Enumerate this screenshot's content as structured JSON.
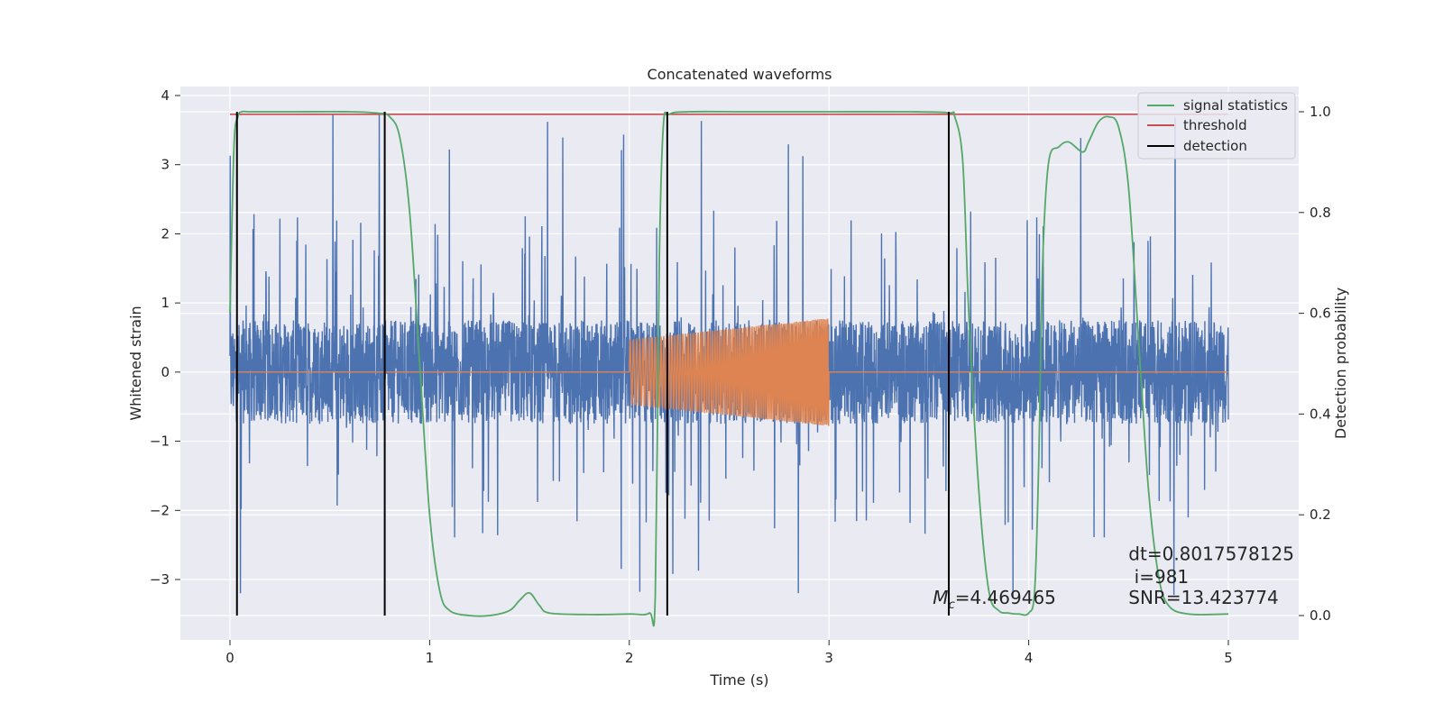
{
  "chart_data": {
    "type": "line",
    "title": "Concatenated waveforms",
    "xlabel": "Time (s)",
    "ylabel": "Whitened strain",
    "y2label": "Detection probability",
    "xlim": [
      -0.24,
      5.35
    ],
    "ylim": [
      -3.87,
      4.11
    ],
    "y2lim": [
      -0.047,
      1.033
    ],
    "xticks": [
      "0",
      "1",
      "2",
      "3",
      "4",
      "5"
    ],
    "yticks": [
      "4",
      "3",
      "2",
      "1",
      "0",
      "−1",
      "−2",
      "−3"
    ],
    "y2ticks": [
      "1.0",
      "0.8",
      "0.6",
      "0.4",
      "0.2",
      "0.0"
    ],
    "grid": true,
    "legend_position": "top-right",
    "colors": {
      "strain": "#4c72b0",
      "template": "#dd8452",
      "signal_statistics": "#55a868",
      "threshold": "#c44e52",
      "detection": "#000000",
      "background": "#eaeaf2",
      "grid": "#ffffff"
    },
    "series": [
      {
        "name": "",
        "axis": "left",
        "kind": "noise",
        "x_range": [
          0.0,
          5.0
        ],
        "envelope": 0.75,
        "peak_max": 3.75,
        "peak_min": -3.5
      },
      {
        "name": "",
        "axis": "left",
        "kind": "chirp",
        "x": [
          0.0,
          2.0,
          2.0,
          3.0,
          3.0,
          5.0
        ],
        "amplitude": [
          0.0,
          0.0,
          0.47,
          0.78,
          0.0,
          0.0
        ]
      },
      {
        "name": "signal statistics",
        "axis": "right",
        "x": [
          0.0,
          0.02,
          0.04,
          0.06,
          0.1,
          0.3,
          0.6,
          0.75,
          0.8,
          0.85,
          0.9,
          0.95,
          1.0,
          1.05,
          1.1,
          1.2,
          1.3,
          1.4,
          1.45,
          1.5,
          1.55,
          1.6,
          1.8,
          2.0,
          2.1,
          2.13,
          2.15,
          2.17,
          2.2,
          2.3,
          2.6,
          3.0,
          3.4,
          3.6,
          3.63,
          3.67,
          3.7,
          3.75,
          3.8,
          3.85,
          3.9,
          3.95,
          4.0,
          4.03,
          4.05,
          4.07,
          4.1,
          4.15,
          4.2,
          4.27,
          4.3,
          4.35,
          4.4,
          4.45,
          4.5,
          4.55,
          4.6,
          4.65,
          4.7,
          4.8,
          5.0
        ],
        "y": [
          0.6,
          0.93,
          0.99,
          1.0,
          1.0,
          1.0,
          1.0,
          0.997,
          0.99,
          0.95,
          0.8,
          0.5,
          0.2,
          0.05,
          0.01,
          0.0,
          0.0,
          0.01,
          0.03,
          0.045,
          0.02,
          0.005,
          0.002,
          0.003,
          0.005,
          0.04,
          0.7,
          0.97,
          0.995,
          1.0,
          1.0,
          1.0,
          1.0,
          0.998,
          0.99,
          0.9,
          0.6,
          0.25,
          0.05,
          0.01,
          0.005,
          0.003,
          0.005,
          0.05,
          0.3,
          0.7,
          0.9,
          0.93,
          0.94,
          0.92,
          0.94,
          0.98,
          0.99,
          0.97,
          0.85,
          0.55,
          0.25,
          0.08,
          0.02,
          0.003,
          0.003
        ]
      },
      {
        "name": "threshold",
        "axis": "right",
        "x": [
          0.0,
          5.0
        ],
        "y": [
          0.995,
          0.995
        ]
      },
      {
        "name": "detection",
        "axis": "right",
        "kind": "vlines",
        "x": [
          0.035,
          0.775,
          2.19,
          3.6
        ],
        "y_range": [
          0.0,
          1.0
        ]
      }
    ],
    "annotations": [
      {
        "id": "mc",
        "symbol": "M",
        "subscript": "c",
        "text": "=4.469465",
        "x": 3.52,
        "y": -3.35
      },
      {
        "id": "dt",
        "text": "dt=0.8017578125",
        "x": 4.5,
        "y": -2.72
      },
      {
        "id": "i",
        "text": " i=981",
        "x": 4.5,
        "y": -3.05
      },
      {
        "id": "snr",
        "text": "SNR=13.423774",
        "x": 4.5,
        "y": -3.35
      }
    ]
  }
}
